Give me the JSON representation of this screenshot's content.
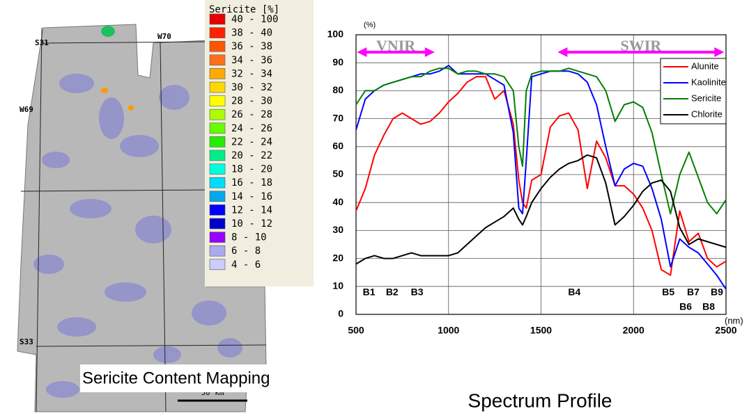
{
  "map": {
    "caption": "Sericite Content Mapping",
    "labels": [
      "S31",
      "W70",
      "W69",
      "S33"
    ],
    "scale": "50 km",
    "legend": {
      "title": "Sericite [%]",
      "items": [
        {
          "label": "40 - 100",
          "color": "#e60000"
        },
        {
          "label": "38 - 40",
          "color": "#ff2200"
        },
        {
          "label": "36 - 38",
          "color": "#ff5500"
        },
        {
          "label": "34 - 36",
          "color": "#ff6e1a"
        },
        {
          "label": "32 - 34",
          "color": "#ffaa00"
        },
        {
          "label": "30 - 32",
          "color": "#ffd800"
        },
        {
          "label": "28 - 30",
          "color": "#ffff00"
        },
        {
          "label": "26 - 28",
          "color": "#aaff00"
        },
        {
          "label": "24 - 26",
          "color": "#66ff00"
        },
        {
          "label": "22 - 24",
          "color": "#22ee00"
        },
        {
          "label": "20 - 22",
          "color": "#00ee88"
        },
        {
          "label": "18 - 20",
          "color": "#00ffdd"
        },
        {
          "label": "16 - 18",
          "color": "#00ddff"
        },
        {
          "label": "14 - 16",
          "color": "#00a8ee"
        },
        {
          "label": "12 - 14",
          "color": "#0000ff"
        },
        {
          "label": "10 - 12",
          "color": "#0000cc"
        },
        {
          "label": "8 - 10",
          "color": "#9900ff"
        },
        {
          "label": "6 - 8",
          "color": "#aaaaee"
        },
        {
          "label": "4 - 6",
          "color": "#ccccff"
        }
      ]
    }
  },
  "chart_data": {
    "type": "line",
    "caption": "Spectrum Profile",
    "y_label": "(%)",
    "x_label": "(nm)",
    "xlim": [
      500,
      2500
    ],
    "xticks": [
      500,
      1000,
      1500,
      2000,
      2500
    ],
    "ylim": [
      0,
      100
    ],
    "yticks": [
      0,
      10,
      20,
      30,
      40,
      50,
      60,
      70,
      80,
      90,
      100
    ],
    "grid": true,
    "legend": "upper right",
    "regions": [
      {
        "label": "VNIR",
        "from": 505,
        "to": 925,
        "color": "#ff00ff"
      },
      {
        "label": "SWIR",
        "from": 1590,
        "to": 2490,
        "color": "#ff00ff"
      }
    ],
    "bands": [
      {
        "label": "B1",
        "x": 570,
        "row": 1
      },
      {
        "label": "B2",
        "x": 695,
        "row": 1
      },
      {
        "label": "B3",
        "x": 830,
        "row": 1
      },
      {
        "label": "B4",
        "x": 1680,
        "row": 1
      },
      {
        "label": "B5",
        "x": 2188,
        "row": 1
      },
      {
        "label": "B7",
        "x": 2323,
        "row": 1
      },
      {
        "label": "B9",
        "x": 2451,
        "row": 1
      },
      {
        "label": "B6",
        "x": 2282,
        "row": 2
      },
      {
        "label": "B8",
        "x": 2406,
        "row": 2
      }
    ],
    "x": [
      500,
      550,
      600,
      650,
      700,
      750,
      800,
      850,
      900,
      950,
      1000,
      1050,
      1100,
      1150,
      1200,
      1250,
      1300,
      1350,
      1380,
      1400,
      1420,
      1450,
      1500,
      1550,
      1600,
      1650,
      1700,
      1750,
      1800,
      1850,
      1900,
      1950,
      2000,
      2050,
      2100,
      2150,
      2200,
      2250,
      2300,
      2350,
      2400,
      2450,
      2500
    ],
    "series": [
      {
        "name": "Alunite",
        "color": "#ff0000",
        "values": [
          37,
          45,
          57,
          64,
          70,
          72,
          70,
          68,
          69,
          72,
          76,
          79,
          83,
          85,
          85,
          77,
          80,
          68,
          48,
          40,
          38,
          48,
          50,
          67,
          71,
          72,
          66,
          45,
          62,
          56,
          46,
          46,
          43,
          38,
          30,
          16,
          14,
          37,
          26,
          29,
          20,
          17,
          19
        ]
      },
      {
        "name": "Kaolinite",
        "color": "#0000ff",
        "values": [
          66,
          77,
          80,
          82,
          83,
          84,
          85,
          86,
          86,
          87,
          89,
          86,
          86,
          86,
          86,
          84,
          82,
          65,
          38,
          36,
          55,
          85,
          86,
          87,
          87,
          87,
          86,
          83,
          75,
          60,
          46,
          52,
          54,
          53,
          45,
          34,
          17,
          27,
          24,
          22,
          18,
          14,
          9
        ]
      },
      {
        "name": "Sericite",
        "color": "#008000",
        "values": [
          75,
          80,
          80,
          82,
          83,
          84,
          85,
          85,
          87,
          88,
          88,
          86,
          87,
          87,
          86,
          86,
          85,
          80,
          60,
          53,
          80,
          86,
          87,
          87,
          87,
          88,
          87,
          86,
          85,
          80,
          69,
          75,
          76,
          74,
          65,
          50,
          36,
          50,
          58,
          49,
          40,
          36,
          41
        ]
      },
      {
        "name": "Chlorite",
        "color": "#000000",
        "values": [
          18,
          20,
          21,
          20,
          20,
          21,
          22,
          21,
          21,
          21,
          21,
          22,
          25,
          28,
          31,
          33,
          35,
          38,
          34,
          32,
          35,
          40,
          45,
          49,
          52,
          54,
          55,
          57,
          56,
          47,
          32,
          35,
          39,
          44,
          47,
          48,
          44,
          31,
          25,
          27,
          26,
          25,
          24
        ]
      }
    ]
  }
}
